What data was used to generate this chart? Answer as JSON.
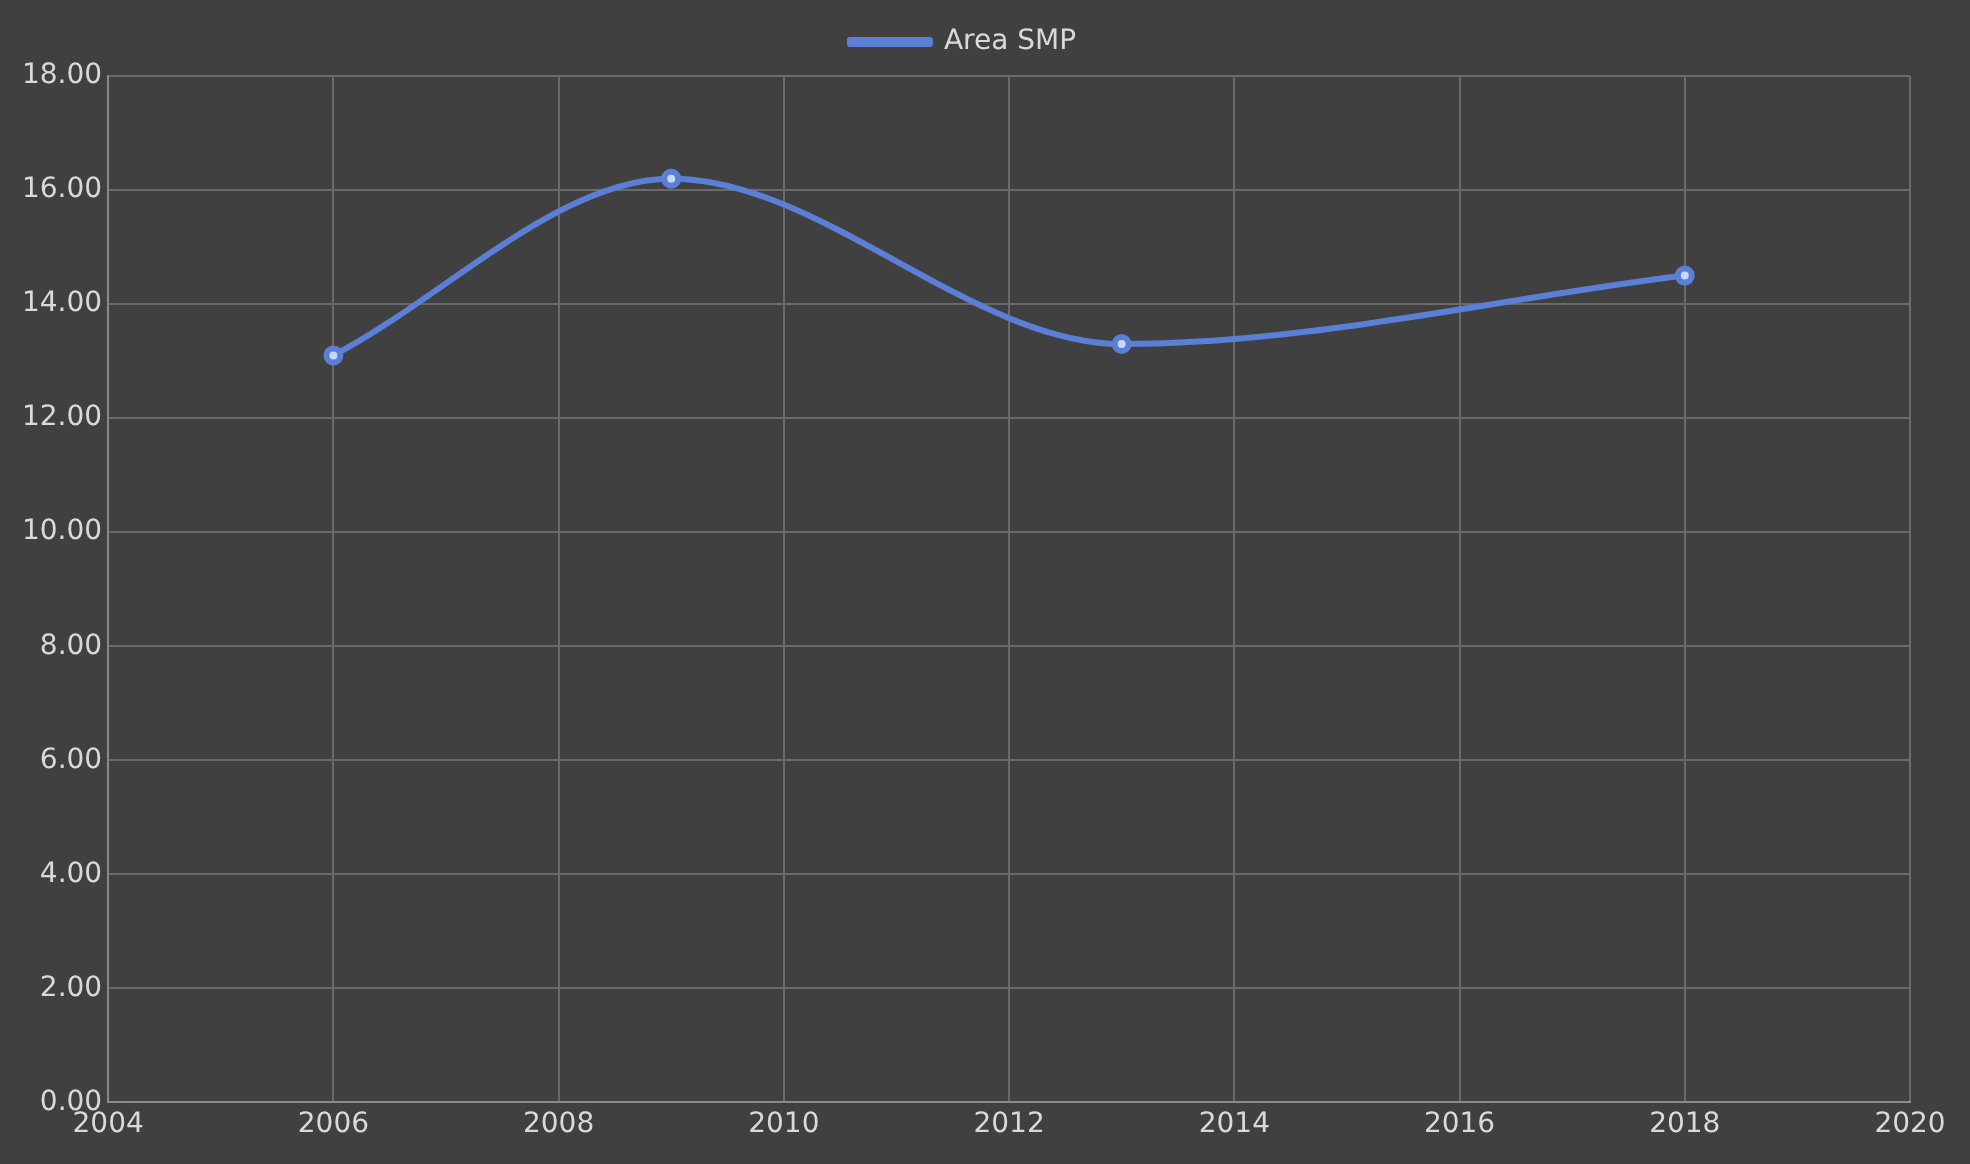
{
  "chart_data": {
    "type": "line",
    "x": [
      2006,
      2009,
      2013,
      2018
    ],
    "series": [
      {
        "name": "Area SMP",
        "color": "#5b7fd6",
        "values": [
          13.1,
          16.2,
          13.3,
          14.5
        ]
      }
    ],
    "xlim": [
      2004,
      2020
    ],
    "xticks": [
      2004,
      2006,
      2008,
      2010,
      2012,
      2014,
      2016,
      2018,
      2020
    ],
    "ylim": [
      0,
      18
    ],
    "yticks": [
      {
        "value": 0,
        "label": "0.00"
      },
      {
        "value": 2,
        "label": "2.00"
      },
      {
        "value": 4,
        "label": "4.00"
      },
      {
        "value": 6,
        "label": "6.00"
      },
      {
        "value": 8,
        "label": "8.00"
      },
      {
        "value": 10,
        "label": "10.00"
      },
      {
        "value": 12,
        "label": "12.00"
      },
      {
        "value": 14,
        "label": "14.00"
      },
      {
        "value": 16,
        "label": "16.00"
      },
      {
        "value": 18,
        "label": "18.00"
      }
    ],
    "grid": true,
    "legend": "top",
    "marker": "circle"
  }
}
